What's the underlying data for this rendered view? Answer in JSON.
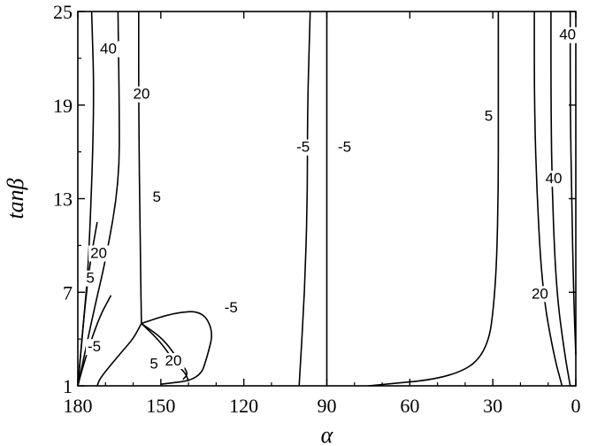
{
  "chart_data": {
    "type": "line",
    "xlabel": "α",
    "ylabel": "tanβ",
    "xlim": [
      180,
      0
    ],
    "ylim": [
      1,
      25
    ],
    "x_ticks": [
      "180",
      "150",
      "120",
      "90",
      "60",
      "30",
      "0"
    ],
    "y_ticks": [
      "1",
      "7",
      "13",
      "19",
      "25"
    ],
    "grid": false,
    "series": [
      {
        "label": "40",
        "points": [
          [
            175,
            25
          ],
          [
            174,
            19
          ],
          [
            176,
            9
          ],
          [
            178,
            5
          ],
          [
            180,
            1
          ]
        ]
      },
      {
        "label": "20",
        "points": [
          [
            165.5,
            25
          ],
          [
            165,
            19
          ],
          [
            165,
            14
          ],
          [
            170,
            9
          ],
          [
            174,
            6
          ],
          [
            180,
            1
          ]
        ]
      },
      {
        "label": "5",
        "points": [
          [
            158,
            25
          ],
          [
            158,
            19
          ],
          [
            157.5,
            10
          ],
          [
            157,
            5
          ]
        ]
      },
      {
        "label": "20",
        "points": [
          [
            173,
            11.5
          ],
          [
            175.5,
            9
          ],
          [
            177.5,
            6
          ],
          [
            179,
            3
          ],
          [
            180,
            1
          ]
        ]
      },
      {
        "label": "5",
        "points": [
          [
            168,
            6.8
          ],
          [
            172,
            5.5
          ],
          [
            176,
            3.5
          ],
          [
            178.5,
            2
          ],
          [
            180,
            1
          ]
        ]
      },
      {
        "label": "-5",
        "points": [
          [
            157,
            5
          ],
          [
            160,
            4
          ],
          [
            165,
            3
          ],
          [
            172,
            1.5
          ],
          [
            173,
            1
          ]
        ]
      },
      {
        "label": "5",
        "points": [
          [
            157,
            5
          ],
          [
            150,
            3.8
          ],
          [
            145,
            2.5
          ],
          [
            141,
            1.8
          ],
          [
            140,
            1.3
          ]
        ]
      },
      {
        "label": "20",
        "points": [
          [
            157,
            5
          ],
          [
            149,
            4
          ],
          [
            143,
            2.5
          ],
          [
            140,
            1.8
          ],
          [
            142,
            1.4
          ]
        ]
      },
      {
        "label": "-5",
        "points": [
          [
            157,
            5
          ],
          [
            145,
            5.7
          ],
          [
            135,
            5.8
          ],
          [
            131,
            4.5
          ],
          [
            133,
            3
          ],
          [
            136,
            1.4
          ],
          [
            150,
            1.1
          ]
        ]
      },
      {
        "label": "-5",
        "points": [
          [
            96,
            25
          ],
          [
            97,
            19
          ],
          [
            97,
            13
          ],
          [
            98,
            7
          ],
          [
            100,
            1
          ]
        ]
      },
      {
        "label": "-5",
        "points": [
          [
            90,
            25
          ],
          [
            90,
            19
          ],
          [
            90,
            13
          ],
          [
            90,
            7
          ],
          [
            90,
            1
          ]
        ]
      },
      {
        "label": "5",
        "points": [
          [
            28,
            25
          ],
          [
            28,
            19
          ],
          [
            28,
            13
          ],
          [
            29,
            7
          ],
          [
            32,
            3
          ],
          [
            45,
            1.5
          ],
          [
            75,
            1
          ]
        ]
      },
      {
        "label": "20",
        "points": [
          [
            15,
            25
          ],
          [
            15,
            19
          ],
          [
            14,
            13
          ],
          [
            12,
            7
          ],
          [
            8,
            3
          ],
          [
            5,
            1
          ]
        ]
      },
      {
        "label": "40",
        "points": [
          [
            9,
            25
          ],
          [
            9,
            19
          ],
          [
            8.5,
            13
          ],
          [
            7,
            7
          ],
          [
            4,
            3
          ],
          [
            2,
            1
          ]
        ]
      },
      {
        "label": "",
        "points": [
          [
            2,
            25
          ],
          [
            2,
            19
          ],
          [
            1.5,
            13
          ],
          [
            0.8,
            7
          ],
          [
            0,
            3
          ]
        ]
      }
    ],
    "annotations": [
      {
        "text": "40",
        "x": 172,
        "y": 22.3
      },
      {
        "text": "20",
        "x": 160,
        "y": 19.4
      },
      {
        "text": "5",
        "x": 153,
        "y": 12.8
      },
      {
        "text": "20",
        "x": 175.5,
        "y": 9.2
      },
      {
        "text": "5",
        "x": 177,
        "y": 7.6
      },
      {
        "text": "-5",
        "x": 176.5,
        "y": 3.2
      },
      {
        "text": "5",
        "x": 154,
        "y": 2.1
      },
      {
        "text": "20",
        "x": 148.5,
        "y": 2.3
      },
      {
        "text": "-5",
        "x": 127,
        "y": 5.7
      },
      {
        "text": "-5",
        "x": 101,
        "y": 16.0
      },
      {
        "text": "-5",
        "x": 86,
        "y": 16.0
      },
      {
        "text": "5",
        "x": 33,
        "y": 18.0
      },
      {
        "text": "40",
        "x": 6,
        "y": 23.2
      },
      {
        "text": "40",
        "x": 11,
        "y": 14.0
      },
      {
        "text": "20",
        "x": 16,
        "y": 6.6
      }
    ]
  }
}
